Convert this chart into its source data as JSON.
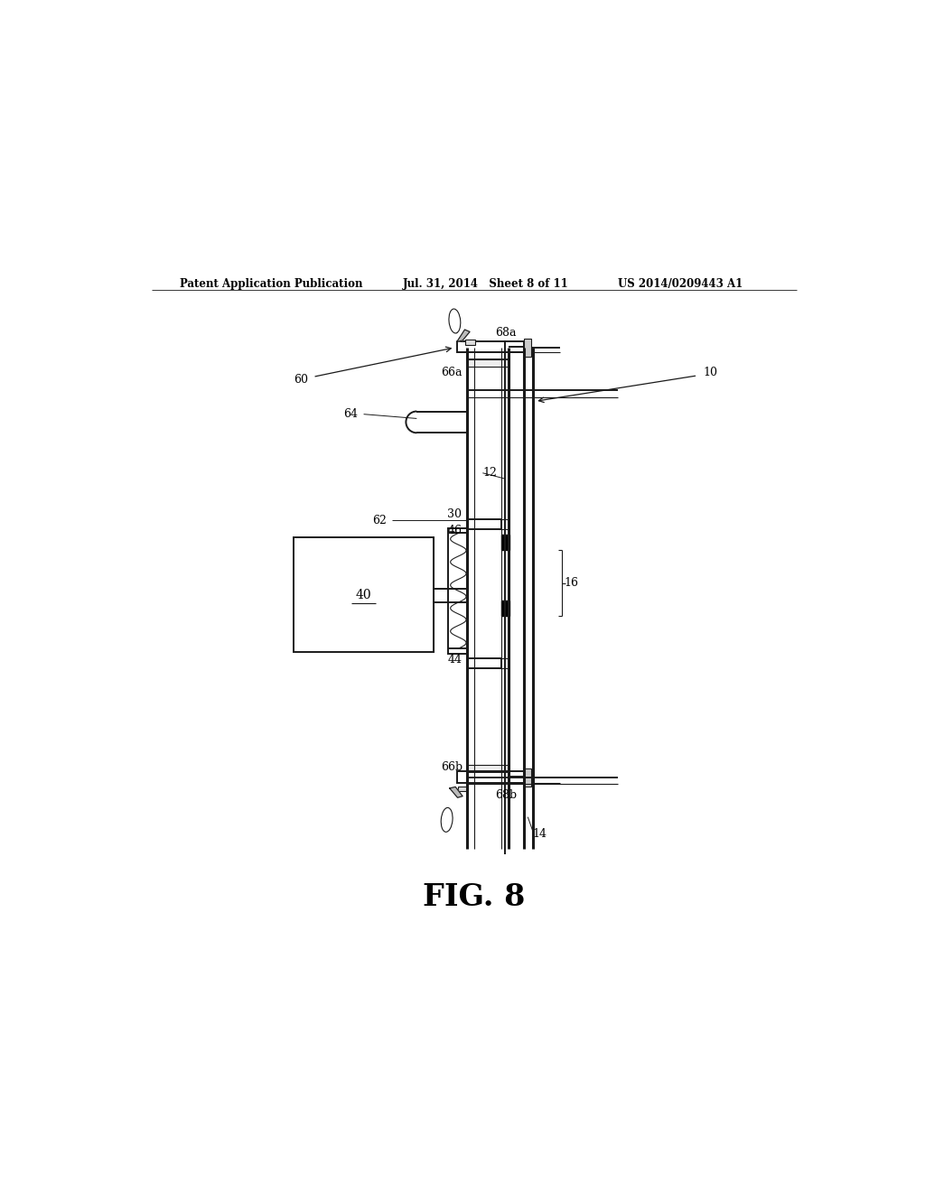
{
  "bg_color": "#ffffff",
  "line_color": "#1a1a1a",
  "header_left": "Patent Application Publication",
  "header_mid": "Jul. 31, 2014   Sheet 8 of 11",
  "header_right": "US 2014/0209443 A1",
  "fig_label": "FIG. 8"
}
